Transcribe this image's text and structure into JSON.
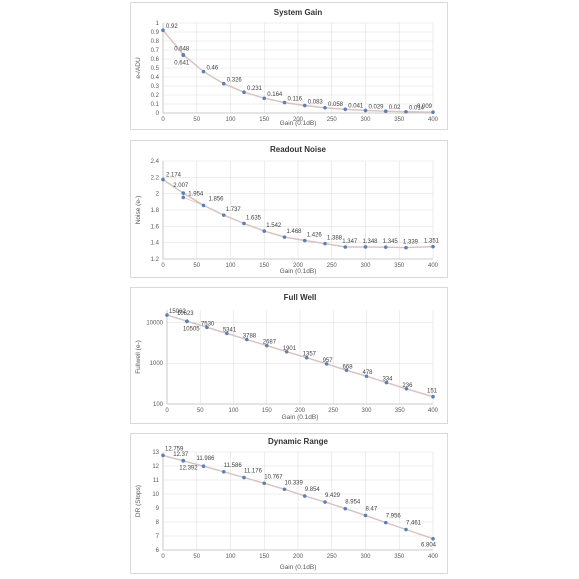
{
  "colors": {
    "trend": "#eab8a0",
    "marker": "#5b7fb8",
    "grid": "#e0e0e0"
  },
  "chart_data": [
    {
      "type": "scatter",
      "title": "System Gain",
      "xlabel": "Gain (0.1dB)",
      "ylabel": "e-/ADU",
      "xlim": [
        0,
        400
      ],
      "ylim": [
        0,
        1
      ],
      "xticks": [
        "0",
        "50",
        "100",
        "150",
        "200",
        "250",
        "300",
        "350",
        "400"
      ],
      "yticks": [
        "0",
        "0.1",
        "0.2",
        "0.3",
        "0.4",
        "0.5",
        "0.6",
        "0.7",
        "0.8",
        "0.9",
        "1"
      ],
      "x": [
        0,
        30,
        30,
        60,
        90,
        120,
        150,
        180,
        210,
        240,
        270,
        300,
        330,
        360,
        400
      ],
      "y": [
        0.92,
        0.648,
        0.641,
        0.46,
        0.326,
        0.231,
        0.164,
        0.116,
        0.083,
        0.058,
        0.041,
        0.029,
        0.02,
        0.014,
        0.009
      ],
      "labels": [
        "0.92",
        "0.648",
        "0.641",
        "0.46",
        "0.326",
        "0.231",
        "0.164",
        "0.116",
        "0.083",
        "0.058",
        "0.041",
        "0.029",
        "0.02",
        "0.014",
        "0.009"
      ],
      "grid": true,
      "trendline": true
    },
    {
      "type": "scatter",
      "title": "Readout Noise",
      "xlabel": "Gain (0.1dB)",
      "ylabel": "Noise (e-)",
      "xlim": [
        0,
        400
      ],
      "ylim": [
        1.2,
        2.4
      ],
      "xticks": [
        "0",
        "50",
        "100",
        "150",
        "200",
        "250",
        "300",
        "350",
        "400"
      ],
      "yticks": [
        "1.2",
        "1.4",
        "1.6",
        "1.8",
        "2",
        "2.2",
        "2.4"
      ],
      "x": [
        0,
        30,
        30,
        60,
        90,
        120,
        150,
        180,
        210,
        240,
        270,
        300,
        330,
        360,
        400
      ],
      "y": [
        2.174,
        2.007,
        1.954,
        1.856,
        1.737,
        1.635,
        1.542,
        1.468,
        1.426,
        1.388,
        1.347,
        1.348,
        1.345,
        1.339,
        1.351
      ],
      "labels": [
        "2.174",
        "2.007",
        "1.954",
        "1.856",
        "1.737",
        "1.635",
        "1.542",
        "1.468",
        "1.426",
        "1.388",
        "1.347",
        "1.348",
        "1.345",
        "1.339",
        "1.351"
      ],
      "grid": true,
      "trendline": true
    },
    {
      "type": "scatter",
      "title": "Full Well",
      "xlabel": "Gain (0.1dB)",
      "ylabel": "Fullwell (e-)",
      "xlim": [
        0,
        400
      ],
      "ylim": [
        100,
        20000
      ],
      "yscale": "log",
      "xticks": [
        "0",
        "50",
        "100",
        "150",
        "200",
        "250",
        "300",
        "350",
        "400"
      ],
      "yticks": [
        "100",
        "1000",
        "10000"
      ],
      "x": [
        0,
        30,
        30,
        60,
        90,
        120,
        150,
        180,
        210,
        240,
        270,
        300,
        330,
        360,
        400
      ],
      "y": [
        15062,
        10623,
        10505,
        7530,
        5341,
        3788,
        2687,
        1901,
        1357,
        957,
        668,
        478,
        334,
        236,
        151
      ],
      "labels": [
        "15062",
        "10623",
        "10505",
        "7530",
        "5341",
        "3788",
        "2687",
        "1901",
        "1357",
        "957",
        "668",
        "478",
        "334",
        "236",
        "151"
      ],
      "grid": true,
      "trendline": true
    },
    {
      "type": "scatter",
      "title": "Dynamic Range",
      "xlabel": "Gain (0.1dB)",
      "ylabel": "DR (Stops)",
      "xlim": [
        0,
        400
      ],
      "ylim": [
        6,
        13
      ],
      "xticks": [
        "0",
        "50",
        "100",
        "150",
        "200",
        "250",
        "300",
        "350",
        "400"
      ],
      "yticks": [
        "6",
        "7",
        "8",
        "9",
        "10",
        "11",
        "12",
        "13"
      ],
      "x": [
        0,
        30,
        30,
        60,
        90,
        120,
        150,
        180,
        210,
        240,
        270,
        300,
        330,
        360,
        400
      ],
      "y": [
        12.759,
        12.37,
        12.392,
        11.986,
        11.586,
        11.176,
        10.767,
        10.339,
        9.854,
        9.429,
        8.954,
        8.47,
        7.956,
        7.461,
        6.804
      ],
      "labels": [
        "12.759",
        "12.37",
        "12.392",
        "11.986",
        "11.586",
        "11.176",
        "10.767",
        "10.339",
        "9.854",
        "9.429",
        "8.954",
        "8.47",
        "7.956",
        "7.461",
        "6.804"
      ],
      "grid": true,
      "trendline": true
    }
  ]
}
